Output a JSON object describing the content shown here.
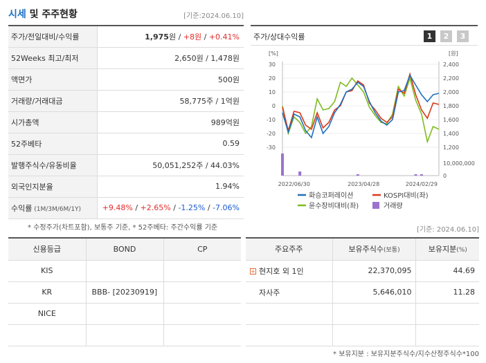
{
  "header": {
    "title_main": "시세",
    "title_rest": " 및 주주현황",
    "asof": "[기준:2024.06.10]",
    "asof2": "[기준: 2024.06.10]"
  },
  "price": {
    "rows": [
      {
        "label": "주가/전일대비/수익률",
        "v1": "1,975",
        "u1": "원",
        "sep1": " / ",
        "v2": "+8원",
        "sep2": " / ",
        "v3": "+0.41%"
      },
      {
        "label": "52Weeks 최고/최저",
        "value": "2,650원 / 1,478원"
      },
      {
        "label": "액면가",
        "value": "500원"
      },
      {
        "label": "거래량/거래대금",
        "value": "58,775주 / 1억원"
      },
      {
        "label": "시가총액",
        "value": "989억원"
      },
      {
        "label": "52주베타",
        "value": "0.59"
      },
      {
        "label": "발행주식수/유동비율",
        "value": "50,051,252주 / 44.03%"
      },
      {
        "label": "외국인지분율",
        "value": "1.94%"
      },
      {
        "label": "수익률",
        "label_small": " (1M/3M/6M/1Y)",
        "r1": "+9.48%",
        "r2": "+2.65%",
        "r3": "-1.25%",
        "r4": "-7.06%"
      }
    ],
    "sep": "/",
    "footnote": "* 수정주가(차트포함), 보통주 기준, * 52주베타: 주간수익률 기준"
  },
  "chart_panel": {
    "title": "주가/상대수익률",
    "pages": [
      "1",
      "2",
      "3"
    ]
  },
  "chart_data": {
    "type": "line",
    "y_left_unit": "[%]",
    "y_right_unit": "[원]",
    "y_left_ticks": [
      "30",
      "20",
      "10",
      "0",
      "-10",
      "-20",
      "-30"
    ],
    "y_right_ticks": [
      "2,400",
      "2,200",
      "2,000",
      "1,800",
      "1,600",
      "1,400",
      "1,200"
    ],
    "volume_ticks": [
      "10,000,000",
      "0"
    ],
    "x_ticks": [
      "2022/06/30",
      "2023/04/28",
      "2024/02/29"
    ],
    "ylim_left": [
      -30,
      30
    ],
    "legend": [
      {
        "name": "화승코퍼레이션",
        "kind": "line",
        "color": "#1f6fba"
      },
      {
        "name": "KOSPI대비(좌)",
        "kind": "line",
        "color": "#d9391a"
      },
      {
        "name": "윤수장비대비(좌)",
        "kind": "line",
        "color": "#7dbb1e"
      },
      {
        "name": "거래량",
        "kind": "bar",
        "color": "#9b72cf"
      }
    ],
    "series": [
      {
        "name": "화승코퍼레이션",
        "values": [
          -5,
          -19,
          -6,
          -8,
          -18,
          -23,
          -8,
          -20,
          -15,
          -5,
          1,
          10,
          12,
          17,
          14,
          3,
          -5,
          -11,
          -14,
          -10,
          10,
          11,
          22,
          15,
          8,
          3,
          8,
          9
        ]
      },
      {
        "name": "KOSPI대비(좌)",
        "values": [
          -1,
          -18,
          -4,
          -5,
          -14,
          -17,
          -5,
          -16,
          -12,
          -3,
          0,
          10,
          11,
          18,
          15,
          2,
          -3,
          -9,
          -12,
          -8,
          12,
          9,
          23,
          8,
          -3,
          -9,
          2,
          1
        ]
      },
      {
        "name": "윤수장비대비(좌)",
        "values": [
          0,
          -20,
          -8,
          -12,
          -20,
          -15,
          5,
          -3,
          -2,
          3,
          17,
          14,
          20,
          15,
          10,
          -1,
          -7,
          -12,
          -13,
          -6,
          14,
          7,
          20,
          4,
          -6,
          -26,
          -15,
          -17
        ]
      },
      {
        "name": "거래량",
        "values": [
          16,
          0,
          0,
          3,
          0,
          0,
          0,
          0,
          0,
          0,
          0,
          0,
          0,
          1,
          0,
          0,
          0,
          0,
          0,
          0,
          0,
          0,
          0,
          1,
          1,
          0,
          0,
          0
        ]
      }
    ]
  },
  "credit": {
    "headers": [
      "신용등급",
      "BOND",
      "CP"
    ],
    "rows": [
      {
        "agency": "KIS",
        "bond": "",
        "cp": ""
      },
      {
        "agency": "KR",
        "bond": "BBB-  [20230919]",
        "cp": ""
      },
      {
        "agency": "NICE",
        "bond": "",
        "cp": ""
      },
      {
        "agency": "",
        "bond": "",
        "cp": ""
      }
    ]
  },
  "holders": {
    "headers": [
      "주요주주",
      "보유주식수",
      "(보통)",
      "보유지분",
      "(%)"
    ],
    "rows": [
      {
        "name": "현지호 외 1인",
        "shares": "22,370,095",
        "pct": "44.69",
        "expandable": true
      },
      {
        "name": "자사주",
        "shares": "5,646,010",
        "pct": "11.28",
        "expandable": false
      },
      {
        "name": "",
        "shares": "",
        "pct": "",
        "expandable": false
      },
      {
        "name": "",
        "shares": "",
        "pct": "",
        "expandable": false
      }
    ],
    "plus_glyph": "+",
    "footnote": "* 보유지분 : 보유지분주식수/지수산정주식수*100"
  }
}
